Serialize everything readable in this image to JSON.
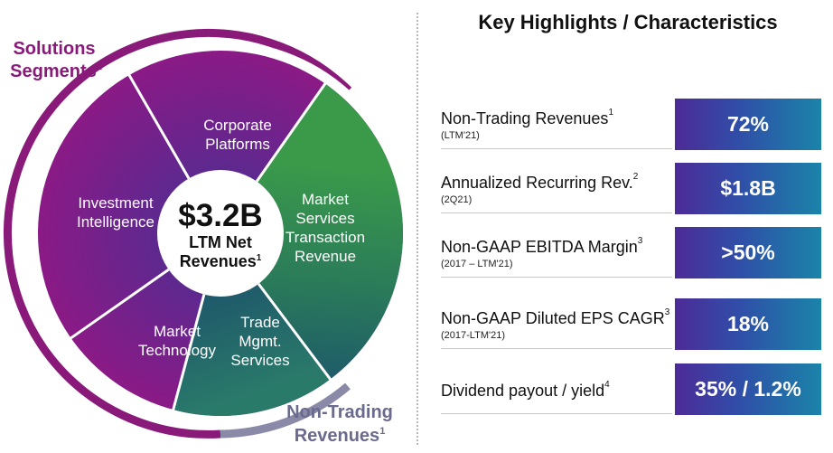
{
  "wheel": {
    "solutions_label_line1": "Solutions",
    "solutions_label_line2": "Segments",
    "solutions_sup": "1",
    "nontrading_label_line1": "Non-Trading",
    "nontrading_label_line2": "Revenues",
    "nontrading_sup": "1",
    "center_value": "$3.2B",
    "center_line1": "LTM Net",
    "center_line2": "Revenues",
    "center_sup": "1",
    "segments": [
      {
        "lines": [
          "Corporate",
          "Platforms"
        ]
      },
      {
        "lines": [
          "Market",
          "Services",
          "Transaction",
          "Revenue"
        ]
      },
      {
        "lines": [
          "Trade",
          "Mgmt.",
          "Services"
        ]
      },
      {
        "lines": [
          "Market",
          "Technology"
        ]
      },
      {
        "lines": [
          "Investment",
          "Intelligence"
        ]
      }
    ],
    "colors": {
      "purple": "#8a1a8a",
      "purple_dark": "#4a2488",
      "green": "#2f8a48",
      "teal": "#1e6a6a",
      "gray": "#8a8aa8",
      "magenta_label": "#8a1a7a",
      "gray_label": "#6a6a8e"
    }
  },
  "highlights": {
    "title": "Key Highlights / Characteristics",
    "rows": [
      {
        "label": "Non-Trading Revenues",
        "sup": "1",
        "sub": "(LTM'21)",
        "value": "72%"
      },
      {
        "label": "Annualized Recurring Rev.",
        "sup": "2",
        "sub": "(2Q21)",
        "value": "$1.8B"
      },
      {
        "label": "Non-GAAP EBITDA Margin",
        "sup": "3",
        "sub": "(2017 – LTM'21)",
        "value": ">50%"
      },
      {
        "label": "Non-GAAP Diluted EPS CAGR",
        "sup": "3",
        "sub": "(2017-LTM'21)",
        "value": "18%"
      },
      {
        "label": "Dividend payout / yield",
        "sup": "4",
        "sub": "",
        "value": "35% / 1.2%"
      }
    ]
  }
}
